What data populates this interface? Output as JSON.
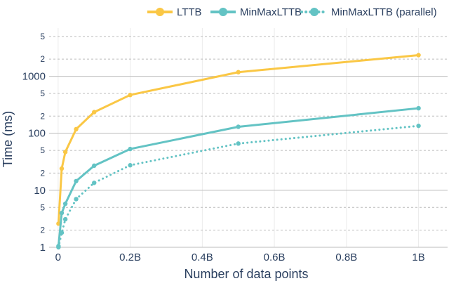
{
  "chart_data": {
    "type": "line",
    "title": "",
    "xlabel": "Number of data points",
    "ylabel": "Time (ms)",
    "x": [
      10000000,
      20000000,
      50000000,
      100000000,
      200000000,
      500000000,
      1000000000
    ],
    "series": [
      {
        "name": "LTTB",
        "color": "#fac745",
        "dash": "solid",
        "values": [
          2.6,
          24,
          47,
          118,
          235,
          470,
          1180,
          2350
        ],
        "x": [
          1000000,
          10000000,
          20000000,
          50000000,
          100000000,
          200000000,
          500000000,
          1000000000
        ]
      },
      {
        "name": "MinMaxLTTB",
        "color": "#63c3c4",
        "dash": "solid",
        "values": [
          1.05,
          4,
          5.8,
          14.5,
          27,
          53,
          130,
          275
        ],
        "x": [
          1000000,
          10000000,
          20000000,
          50000000,
          100000000,
          200000000,
          500000000,
          1000000000
        ]
      },
      {
        "name": "MinMaxLTTB (parallel)",
        "color": "#63c3c4",
        "dash": "dot",
        "values": [
          1.0,
          1.8,
          3.1,
          7,
          13.5,
          27.5,
          66,
          135
        ],
        "x": [
          1000000,
          10000000,
          20000000,
          50000000,
          100000000,
          200000000,
          500000000,
          1000000000
        ]
      }
    ],
    "x_ticks": [
      "0",
      "0.2B",
      "0.4B",
      "0.6B",
      "0.8B",
      "1B"
    ],
    "x_tick_values": [
      0,
      200000000,
      400000000,
      600000000,
      800000000,
      1000000000
    ],
    "xlim": [
      -25000000,
      1030000000
    ],
    "y_scale": "log",
    "ylim": [
      1,
      7000
    ],
    "y_major_ticks": [
      {
        "value": 1,
        "label": "1"
      },
      {
        "value": 10,
        "label": "10"
      },
      {
        "value": 100,
        "label": "100"
      },
      {
        "value": 1000,
        "label": "1000"
      }
    ],
    "y_minor_ticks": [
      {
        "value": 2,
        "label": "2"
      },
      {
        "value": 5,
        "label": "5"
      },
      {
        "value": 20,
        "label": "2"
      },
      {
        "value": 50,
        "label": "5"
      },
      {
        "value": 200,
        "label": "2"
      },
      {
        "value": 500,
        "label": "5"
      },
      {
        "value": 2000,
        "label": "2"
      },
      {
        "value": 5000,
        "label": "5"
      }
    ],
    "grid": true,
    "legend_position": "top-right",
    "colors": {
      "gridline": "#bcbcbc",
      "axis_text": "#2a3f5f"
    }
  }
}
